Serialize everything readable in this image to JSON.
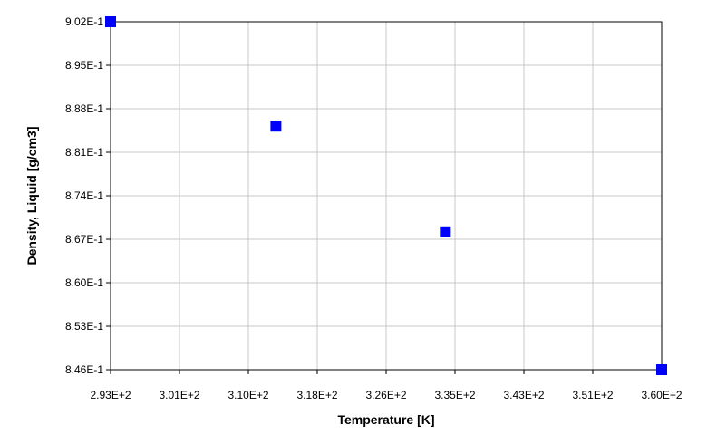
{
  "chart_data": {
    "type": "scatter",
    "x_label": "Temperature [K]",
    "y_label": "Density, Liquid [g/cm3]",
    "series": [
      {
        "color": "#0000ff",
        "x": [
          293,
          313.1,
          333.7,
          360
        ],
        "values": [
          0.902,
          0.8852,
          0.8682,
          0.846
        ]
      }
    ],
    "xlim": [
      293,
      360
    ],
    "xticks": [
      {
        "value": 293,
        "label": "2.93E+2"
      },
      {
        "value": 301.375,
        "label": "3.01E+2"
      },
      {
        "value": 309.75,
        "label": "3.10E+2"
      },
      {
        "value": 318.125,
        "label": "3.18E+2"
      },
      {
        "value": 326.5,
        "label": "3.26E+2"
      },
      {
        "value": 334.875,
        "label": "3.35E+2"
      },
      {
        "value": 343.25,
        "label": "3.43E+2"
      },
      {
        "value": 351.625,
        "label": "3.51E+2"
      },
      {
        "value": 360,
        "label": "3.60E+2"
      }
    ],
    "ylim": [
      0.846,
      0.902
    ],
    "yticks": [
      {
        "value": 0.846,
        "label": "8.46E-1"
      },
      {
        "value": 0.853,
        "label": "8.53E-1"
      },
      {
        "value": 0.86,
        "label": "8.60E-1"
      },
      {
        "value": 0.867,
        "label": "8.67E-1"
      },
      {
        "value": 0.874,
        "label": "8.74E-1"
      },
      {
        "value": 0.881,
        "label": "8.81E-1"
      },
      {
        "value": 0.888,
        "label": "8.88E-1"
      },
      {
        "value": 0.895,
        "label": "8.95E-1"
      },
      {
        "value": 0.902,
        "label": "9.02E-1"
      }
    ],
    "grid": true
  }
}
